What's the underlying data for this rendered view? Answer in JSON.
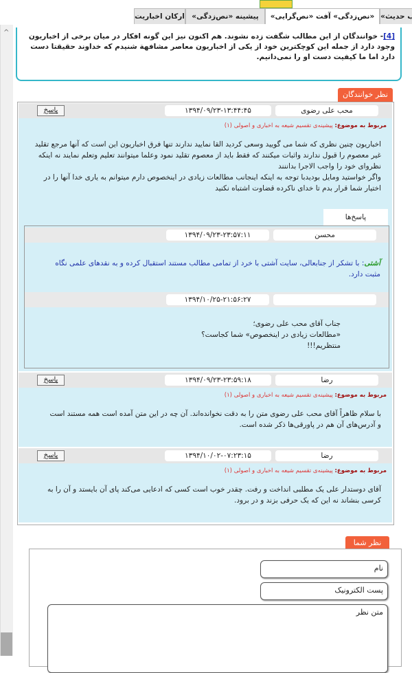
{
  "tabs": [
    "ب حدیث»",
    "«نص‌زدگی» آفت «نص‌گرایی»",
    "پیشینه «نص‌زدگی»",
    "ارکان اخباریت"
  ],
  "footnote": {
    "ref": "[4]",
    "text": "- خوانندگان از این مطالب شگفت زده نشوند. هم اکنون نیز این گونه افکار در میان برخی از اخباریون وجود دارد از جمله این کوچکترین خود از یکی از اخباریون معاصر مشافهة شنیدم که خداوند حقیقتا دست دارد اما ما کیفیت دست او را نمی‌دانیم."
  },
  "comments_title": "نظر خوانندگان",
  "comments": [
    {
      "name": "محب علی رضوی",
      "date": "۱۳۹۴/۰۹/۲۳-۱۳:۴۴:۴۵",
      "reply_button": "پاسخ",
      "topic_label": "مربوط به موضوع:",
      "topic": "پیشینه‌ی تقسیم شیعه به اخباری و اصولی (۱)",
      "paragraphs": [
        "اخباریون چنین نظری که شما می گویید وسعی کردید القا نمایید ندارند تنها فرق اخباریون این است که آنها مرجع تقلید غیر معصوم را قبول ندارند واثبات میکنند که فقط باید از معصوم تقلید نمود وعلما میتوانند تعلیم وتعلم نمایند نه اینکه نظروای خود را واجب الاجرا بداننند",
        "واگر خواستید ومایل بودیدبا توجه به اینکه اینجانب مطالعات زیادی در اینخصوص دارم میتوانم به یاری خدا آنها را در اختیار شما قرار بدم تا خدای ناکرده قضاوت اشتباه نکنید"
      ]
    },
    {
      "name": "رضا",
      "date": "۱۳۹۴/۰۹/۲۳-۲۳:۵۹:۱۸",
      "reply_button": "پاسخ",
      "topic_label": "مربوط به موضوع:",
      "topic": "پیشینه‌ی تقسیم شیعه به اخباری و اصولی (۱)",
      "paragraphs": [
        "با سلام ظاهراً آقای محب علی رضوی متن را به دقت نخوانده‌اند. آن چه در این متن آمده است همه مستند است و آدرس‌های آن هم در پاورقی‌ها ذکر شده است."
      ]
    },
    {
      "name": "رضا",
      "date": "۱۳۹۴/۱۰/۰۲-۰۷:۲۳:۱۵",
      "reply_button": "پاسخ",
      "topic_label": "مربوط به موضوع:",
      "topic": "پیشینه‌ی تقسیم شیعه به اخباری و اصولی (۱)",
      "paragraphs": [
        "آقای دوستدار علی یک مطلبی انداخت و رفت. چقدر خوب است کسی که ادعایی می‌کند پای آن بایستد و آن را به کرسی بنشاند نه این که یک حرفی بزند و در برود."
      ]
    }
  ],
  "replies_title": "پاسخ‌ها",
  "replies": [
    {
      "name": "محسن",
      "date": "۱۳۹۴/۰۹/۲۳-۲۳:۵۷:۱۱",
      "author_tag": "آشتی",
      "text": ": با تشکر از جنابعالی، سایت آشتی با خرد از تمامی مطالب مستند استقبال کرده و به نقدهای علمی نگاه مثبت دارد."
    },
    {
      "date": "۱۳۹۴/۱۰/۲۵-۲۱:۵۶:۲۷",
      "lines": [
        "جناب آقای محب علی رضوی؛",
        "«مطالعات زیادی در اینخصوص» شما کجاست؟",
        "منتظریم!!!"
      ]
    }
  ],
  "form": {
    "title": "نظر شما",
    "name_placeholder": "نام",
    "email_placeholder": "پست الکترونیک",
    "message_placeholder": "متن نظر"
  }
}
